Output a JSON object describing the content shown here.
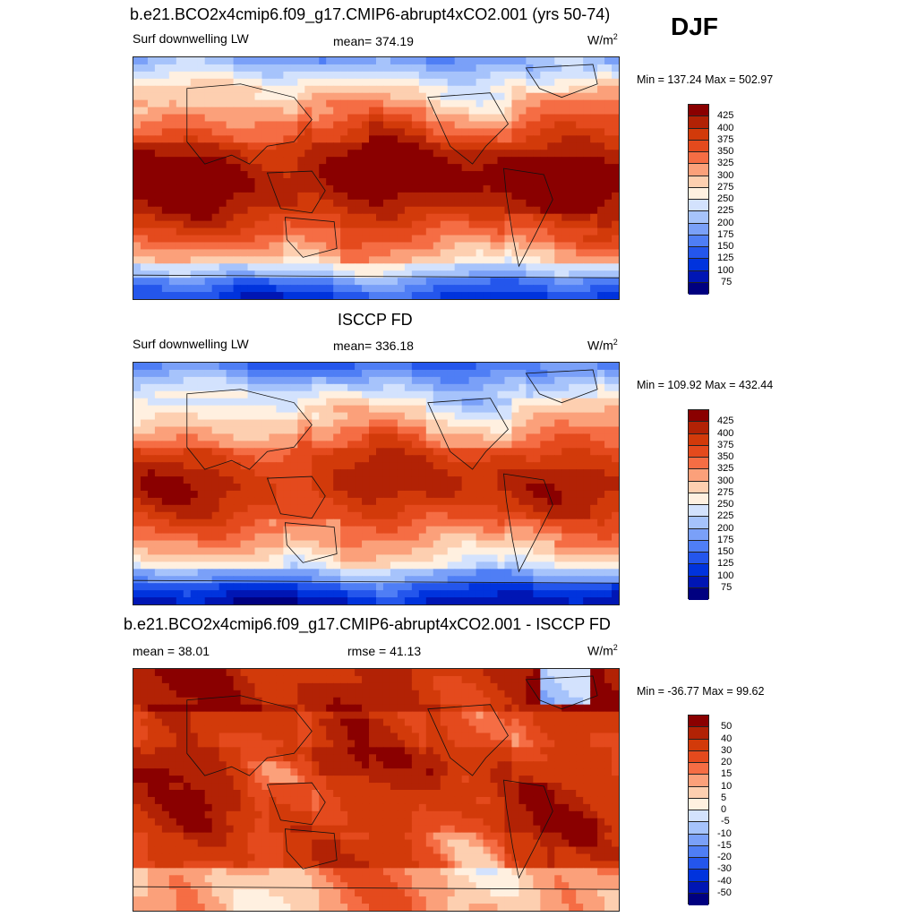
{
  "season": "DJF",
  "colors": {
    "scale": [
      "#000080",
      "#0016b4",
      "#0033dd",
      "#2456ec",
      "#4f7ef5",
      "#7aa0f8",
      "#a6c3fb",
      "#d3e2fd",
      "#fff0e0",
      "#fdcfb0",
      "#fba07a",
      "#f56d44",
      "#e44a1d",
      "#d23a0a",
      "#b22205",
      "#8a0000"
    ]
  },
  "panels": [
    {
      "id": "model",
      "title": "b.e21.BCO2x4cmip6.f09_g17.CMIP6-abrupt4xCO2.001 (yrs 50-74)",
      "left_label": "Surf downwelling LW",
      "center_label": "mean= 374.19",
      "units": "W/m",
      "units_sup": "2",
      "minmax": "Min = 137.24 Max = 502.97",
      "ticks": [
        "425",
        "400",
        "375",
        "350",
        "325",
        "300",
        "275",
        "250",
        "225",
        "200",
        "175",
        "150",
        "125",
        "100",
        "75"
      ],
      "field": "model"
    },
    {
      "id": "obs",
      "title": "ISCCP FD",
      "left_label": "Surf downwelling LW",
      "center_label": "mean= 336.18",
      "units": "W/m",
      "units_sup": "2",
      "minmax": "Min = 109.92 Max = 432.44",
      "ticks": [
        "425",
        "400",
        "375",
        "350",
        "325",
        "300",
        "275",
        "250",
        "225",
        "200",
        "175",
        "150",
        "125",
        "100",
        "75"
      ],
      "field": "obs"
    },
    {
      "id": "diff",
      "title": "b.e21.BCO2x4cmip6.f09_g17.CMIP6-abrupt4xCO2.001 - ISCCP FD",
      "left_label": "mean =  38.01",
      "center_label": "rmse =  41.13",
      "units": "W/m",
      "units_sup": "2",
      "minmax": "Min = -36.77 Max =  99.62",
      "ticks": [
        "50",
        "40",
        "30",
        "20",
        "15",
        "10",
        "5",
        "0",
        "-5",
        "-10",
        "-15",
        "-20",
        "-30",
        "-40",
        "-50"
      ],
      "field": "diff"
    }
  ]
}
